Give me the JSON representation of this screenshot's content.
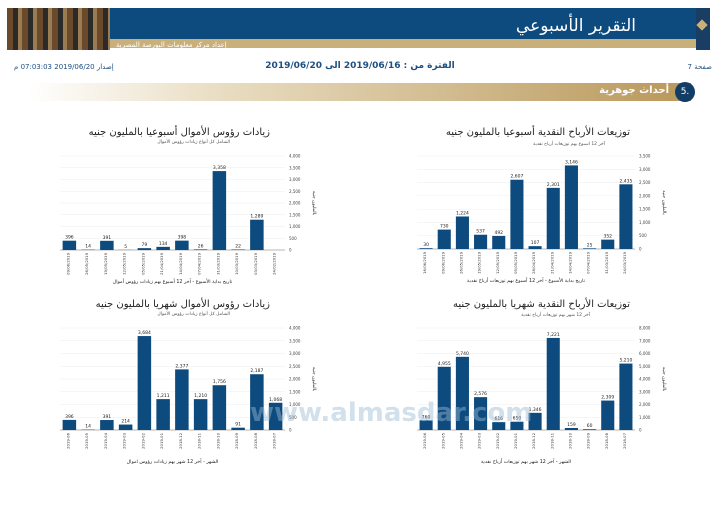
{
  "header": {
    "title": "التقرير الأسبوعي",
    "subtitle": "إعداد مركز معلومات البورصة المصرية"
  },
  "meta": {
    "page": "صفحة 7",
    "period": "الفترة من : 2019/06/16 الى 2019/06/20",
    "issued": "إصدار 2019/06/20 07:03:03 م"
  },
  "section": {
    "number": "5.",
    "label": "أحداث جوهرية"
  },
  "watermark": {
    "text": "www.almasdar.com"
  },
  "colors": {
    "bar": "#0d4a7e",
    "header": "#0d4a7e",
    "gold": "#b9975a"
  },
  "chart_data": [
    {
      "type": "bar",
      "title": "توزيعات الأرباح النقدية أسبوعيا بالمليون جنيه",
      "subtitle": "آخر 12 اسبوع بهم توزيعات أرباح نقدية",
      "xlabel": "تاريخ بداية الأسبوع - آخر 12 أسبوع بهم توزيعات أرباح نقدية",
      "ylabel": "بالمليون جنيه",
      "ylim": [
        0,
        3500
      ],
      "yticks": [
        "0",
        "500",
        "1,000",
        "1,500",
        "2,000",
        "2,500",
        "3,000",
        "3,500"
      ],
      "categories": [
        "16/06/2019",
        "09/06/2019",
        "26/05/2019",
        "19/05/2019",
        "12/05/2019",
        "05/05/2019",
        "28/04/2019",
        "21/04/2019",
        "14/04/2019",
        "07/04/2019",
        "31/03/2019",
        "24/03/2019"
      ],
      "values": [
        30,
        730,
        1224,
        537,
        492,
        2607,
        107,
        2301,
        3146,
        25,
        352,
        2435
      ],
      "labels": [
        "30",
        "730",
        "1,224",
        "537",
        "492",
        "2,607",
        "107",
        "2,301",
        "3,146",
        "25",
        "352",
        "2,435"
      ]
    },
    {
      "type": "bar",
      "title": "زيادات رؤوس الأموال أسبوعيا بالمليون جنيه",
      "subtitle": "الشامل كل أنواع زيادات رؤوس الأموال",
      "xlabel": "تاريخ بداية الأسبوع - آخر 12 أسبوع بهم زيادات رؤوس أموال",
      "ylabel": "بالمليون جنيه",
      "ylim": [
        0,
        4000
      ],
      "yticks": [
        "0",
        "500",
        "1,000",
        "1,500",
        "2,000",
        "2,500",
        "3,000",
        "3,500",
        "4,000"
      ],
      "categories": [
        "09/06/2019",
        "26/05/2019",
        "19/05/2019",
        "12/05/2019",
        "05/05/2019",
        "21/04/2019",
        "14/04/2019",
        "07/04/2019",
        "31/03/2019",
        "10/03/2019",
        "03/03/2019",
        "24/02/2019"
      ],
      "values": [
        396,
        14,
        391,
        5,
        79,
        134,
        398,
        26,
        3358,
        22,
        1289,
        0
      ],
      "labels": [
        "396",
        "14",
        "391",
        "5",
        "79",
        "134",
        "398",
        "26",
        "3,358",
        "22",
        "1,289",
        ""
      ]
    },
    {
      "type": "bar",
      "title": "توزيعات الأرباح النقدية شهريا بالمليون جنيه",
      "subtitle": "آخر 12 شهر بهم توزيعات أرباح نقدية",
      "xlabel": "الشهر - آخر 12 شهر بهم توزيعات أرباح نقدية",
      "ylabel": "بالمليون جنيه",
      "ylim": [
        0,
        8000
      ],
      "yticks": [
        "0",
        "1,000",
        "2,000",
        "3,000",
        "4,000",
        "5,000",
        "6,000",
        "7,000",
        "8,000"
      ],
      "categories": [
        "2019-06",
        "2019-05",
        "2019-04",
        "2019-03",
        "2019-02",
        "2019-01",
        "2018-12",
        "2018-11",
        "2018-10",
        "2018-09",
        "2018-08",
        "2018-07"
      ],
      "values": [
        760,
        4955,
        5740,
        2576,
        616,
        650,
        1346,
        7221,
        159,
        60,
        2309,
        5210
      ],
      "labels": [
        "760",
        "4,955",
        "5,740",
        "2,576",
        "616",
        "650",
        "1,346",
        "7,221",
        "159",
        "60",
        "2,309",
        "5,210"
      ]
    },
    {
      "type": "bar",
      "title": "زيادات رؤوس الأموال شهريا بالمليون جنيه",
      "subtitle": "الشامل كل أنواع زيادات رؤوس الأموال",
      "xlabel": "الشهر - آخر 12 شهر بهم زيادات رؤوس اموال",
      "ylabel": "بالمليون جنيه",
      "ylim": [
        0,
        4000
      ],
      "yticks": [
        "0",
        "500",
        "1,000",
        "1,500",
        "2,000",
        "2,500",
        "3,000",
        "3,500",
        "4,000"
      ],
      "categories": [
        "2019-06",
        "2019-05",
        "2019-04",
        "2019-03",
        "2019-02",
        "2019-01",
        "2018-12",
        "2018-11",
        "2018-10",
        "2018-09",
        "2018-08",
        "2018-07"
      ],
      "values": [
        396,
        14,
        391,
        214,
        3684,
        1211,
        2377,
        1210,
        1756,
        91,
        2187,
        1068
      ],
      "labels": [
        "396",
        "14",
        "391",
        "214",
        "3,684",
        "1,211",
        "2,377",
        "1,210",
        "1,756",
        "91",
        "2,187",
        "1,068"
      ]
    }
  ]
}
